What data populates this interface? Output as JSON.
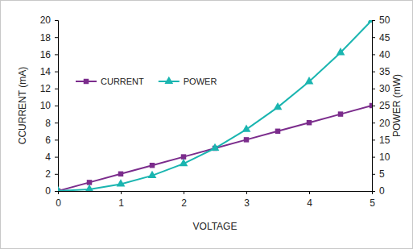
{
  "chart_data": {
    "type": "line",
    "x_label": "VOLTAGE",
    "y_label": "CCURRENT (mA)",
    "y2_label": "POWER (mW)",
    "x": [
      0,
      0.5,
      1,
      1.5,
      2,
      2.5,
      3,
      3.5,
      4,
      4.5,
      5
    ],
    "xlim": [
      0,
      5
    ],
    "xticks": [
      0,
      1,
      2,
      3,
      4,
      5
    ],
    "ylim": [
      0,
      20
    ],
    "yticks": [
      0,
      2,
      4,
      6,
      8,
      10,
      12,
      14,
      16,
      18,
      20
    ],
    "y2lim": [
      0,
      50
    ],
    "y2ticks": [
      0,
      5,
      10,
      15,
      20,
      25,
      30,
      35,
      40,
      45,
      50
    ],
    "grid": false,
    "legend": "upper left",
    "series": [
      {
        "name": "CURRENT",
        "color": "#7b2c8c",
        "marker": "square",
        "axis": "y",
        "values": [
          0,
          1,
          2,
          3,
          4,
          5,
          6,
          7,
          8,
          9,
          10
        ]
      },
      {
        "name": "POWER",
        "color": "#1ab5b0",
        "marker": "triangle",
        "axis": "y2",
        "values": [
          0,
          0.5,
          2,
          4.5,
          8,
          12.5,
          18,
          24.5,
          32,
          40.5,
          50
        ]
      }
    ]
  }
}
